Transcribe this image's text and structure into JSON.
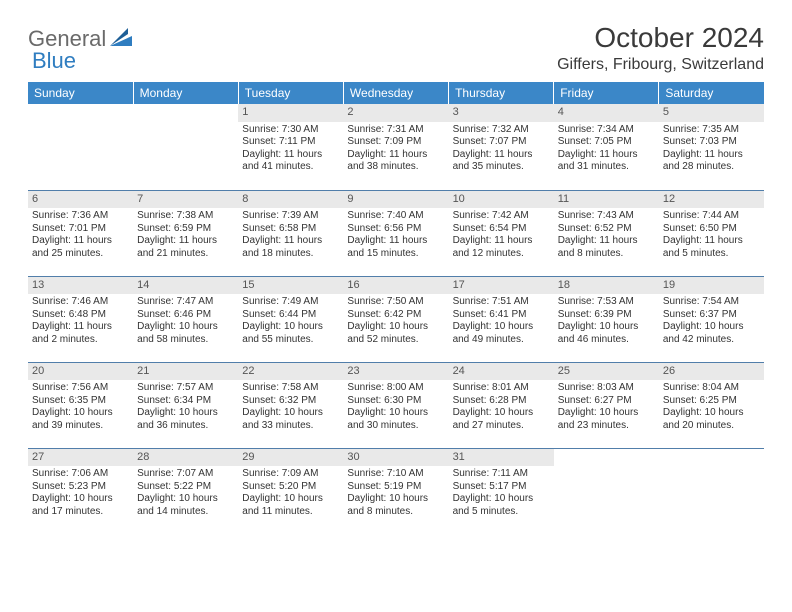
{
  "brand": {
    "general": "General",
    "blue": "Blue"
  },
  "title": "October 2024",
  "location": "Giffers, Fribourg, Switzerland",
  "colors": {
    "header_bg": "#3b87c8",
    "header_text": "#ffffff",
    "daynum_bg": "#e9e9e9",
    "row_divider": "#517eaa",
    "text": "#333333",
    "logo_gray": "#6a6a6a",
    "logo_blue": "#2f7dc0"
  },
  "calendar": {
    "type": "table",
    "columns": [
      "Sunday",
      "Monday",
      "Tuesday",
      "Wednesday",
      "Thursday",
      "Friday",
      "Saturday"
    ],
    "weeks": [
      [
        null,
        null,
        {
          "n": "1",
          "sr": "7:30 AM",
          "ss": "7:11 PM",
          "dl": "11 hours and 41 minutes."
        },
        {
          "n": "2",
          "sr": "7:31 AM",
          "ss": "7:09 PM",
          "dl": "11 hours and 38 minutes."
        },
        {
          "n": "3",
          "sr": "7:32 AM",
          "ss": "7:07 PM",
          "dl": "11 hours and 35 minutes."
        },
        {
          "n": "4",
          "sr": "7:34 AM",
          "ss": "7:05 PM",
          "dl": "11 hours and 31 minutes."
        },
        {
          "n": "5",
          "sr": "7:35 AM",
          "ss": "7:03 PM",
          "dl": "11 hours and 28 minutes."
        }
      ],
      [
        {
          "n": "6",
          "sr": "7:36 AM",
          "ss": "7:01 PM",
          "dl": "11 hours and 25 minutes."
        },
        {
          "n": "7",
          "sr": "7:38 AM",
          "ss": "6:59 PM",
          "dl": "11 hours and 21 minutes."
        },
        {
          "n": "8",
          "sr": "7:39 AM",
          "ss": "6:58 PM",
          "dl": "11 hours and 18 minutes."
        },
        {
          "n": "9",
          "sr": "7:40 AM",
          "ss": "6:56 PM",
          "dl": "11 hours and 15 minutes."
        },
        {
          "n": "10",
          "sr": "7:42 AM",
          "ss": "6:54 PM",
          "dl": "11 hours and 12 minutes."
        },
        {
          "n": "11",
          "sr": "7:43 AM",
          "ss": "6:52 PM",
          "dl": "11 hours and 8 minutes."
        },
        {
          "n": "12",
          "sr": "7:44 AM",
          "ss": "6:50 PM",
          "dl": "11 hours and 5 minutes."
        }
      ],
      [
        {
          "n": "13",
          "sr": "7:46 AM",
          "ss": "6:48 PM",
          "dl": "11 hours and 2 minutes."
        },
        {
          "n": "14",
          "sr": "7:47 AM",
          "ss": "6:46 PM",
          "dl": "10 hours and 58 minutes."
        },
        {
          "n": "15",
          "sr": "7:49 AM",
          "ss": "6:44 PM",
          "dl": "10 hours and 55 minutes."
        },
        {
          "n": "16",
          "sr": "7:50 AM",
          "ss": "6:42 PM",
          "dl": "10 hours and 52 minutes."
        },
        {
          "n": "17",
          "sr": "7:51 AM",
          "ss": "6:41 PM",
          "dl": "10 hours and 49 minutes."
        },
        {
          "n": "18",
          "sr": "7:53 AM",
          "ss": "6:39 PM",
          "dl": "10 hours and 46 minutes."
        },
        {
          "n": "19",
          "sr": "7:54 AM",
          "ss": "6:37 PM",
          "dl": "10 hours and 42 minutes."
        }
      ],
      [
        {
          "n": "20",
          "sr": "7:56 AM",
          "ss": "6:35 PM",
          "dl": "10 hours and 39 minutes."
        },
        {
          "n": "21",
          "sr": "7:57 AM",
          "ss": "6:34 PM",
          "dl": "10 hours and 36 minutes."
        },
        {
          "n": "22",
          "sr": "7:58 AM",
          "ss": "6:32 PM",
          "dl": "10 hours and 33 minutes."
        },
        {
          "n": "23",
          "sr": "8:00 AM",
          "ss": "6:30 PM",
          "dl": "10 hours and 30 minutes."
        },
        {
          "n": "24",
          "sr": "8:01 AM",
          "ss": "6:28 PM",
          "dl": "10 hours and 27 minutes."
        },
        {
          "n": "25",
          "sr": "8:03 AM",
          "ss": "6:27 PM",
          "dl": "10 hours and 23 minutes."
        },
        {
          "n": "26",
          "sr": "8:04 AM",
          "ss": "6:25 PM",
          "dl": "10 hours and 20 minutes."
        }
      ],
      [
        {
          "n": "27",
          "sr": "7:06 AM",
          "ss": "5:23 PM",
          "dl": "10 hours and 17 minutes."
        },
        {
          "n": "28",
          "sr": "7:07 AM",
          "ss": "5:22 PM",
          "dl": "10 hours and 14 minutes."
        },
        {
          "n": "29",
          "sr": "7:09 AM",
          "ss": "5:20 PM",
          "dl": "10 hours and 11 minutes."
        },
        {
          "n": "30",
          "sr": "7:10 AM",
          "ss": "5:19 PM",
          "dl": "10 hours and 8 minutes."
        },
        {
          "n": "31",
          "sr": "7:11 AM",
          "ss": "5:17 PM",
          "dl": "10 hours and 5 minutes."
        },
        null,
        null
      ]
    ],
    "labels": {
      "sunrise": "Sunrise:",
      "sunset": "Sunset:",
      "daylight": "Daylight:"
    }
  }
}
